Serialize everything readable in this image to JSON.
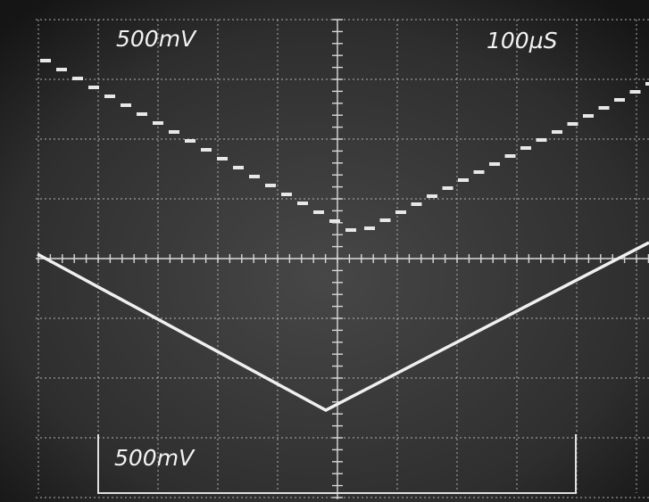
{
  "display": {
    "ch1_scale": "500mV",
    "timebase": "100µS",
    "ch2_scale": "500mV"
  }
}
